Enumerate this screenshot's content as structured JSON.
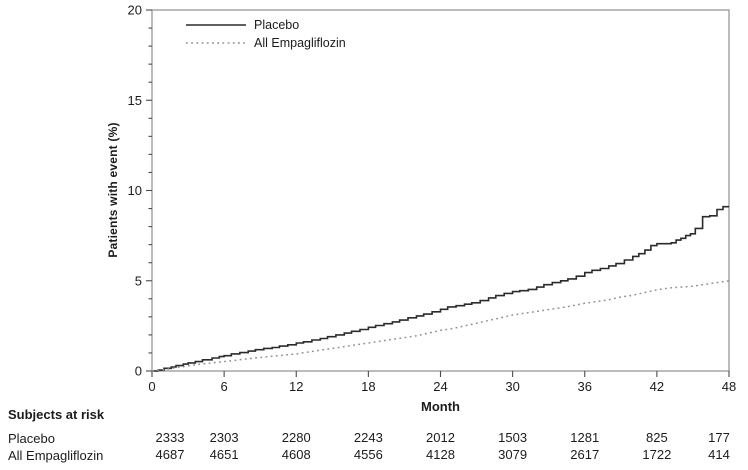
{
  "chart_data": {
    "type": "line",
    "subtype": "kaplan-meier-cumulative-incidence",
    "title": "",
    "xlabel": "Month",
    "ylabel": "Patients with event (%)",
    "xlim": [
      0,
      48
    ],
    "ylim": [
      0,
      20
    ],
    "x_ticks": [
      0,
      6,
      12,
      18,
      24,
      30,
      36,
      42,
      48
    ],
    "y_ticks": [
      0,
      5,
      10,
      15,
      20
    ],
    "y_minor_step": 1,
    "grid": "off",
    "legend_position": "top-left-inside",
    "series": [
      {
        "name": "Placebo",
        "style": "solid",
        "step": true,
        "points": [
          [
            0,
            0
          ],
          [
            0.5,
            0.05
          ],
          [
            1,
            0.15
          ],
          [
            1.6,
            0.22
          ],
          [
            2,
            0.3
          ],
          [
            2.6,
            0.38
          ],
          [
            3,
            0.45
          ],
          [
            3.6,
            0.52
          ],
          [
            4.2,
            0.62
          ],
          [
            5,
            0.72
          ],
          [
            5.6,
            0.8
          ],
          [
            6,
            0.85
          ],
          [
            6.6,
            0.95
          ],
          [
            7.3,
            1.02
          ],
          [
            8,
            1.1
          ],
          [
            8.6,
            1.18
          ],
          [
            9.3,
            1.25
          ],
          [
            10,
            1.3
          ],
          [
            10.6,
            1.38
          ],
          [
            11.3,
            1.45
          ],
          [
            12,
            1.55
          ],
          [
            12.6,
            1.62
          ],
          [
            13.3,
            1.72
          ],
          [
            14,
            1.8
          ],
          [
            14.6,
            1.9
          ],
          [
            15.3,
            2.0
          ],
          [
            16,
            2.1
          ],
          [
            16.6,
            2.2
          ],
          [
            17.3,
            2.3
          ],
          [
            18,
            2.42
          ],
          [
            18.6,
            2.52
          ],
          [
            19.3,
            2.62
          ],
          [
            20,
            2.72
          ],
          [
            20.6,
            2.82
          ],
          [
            21.3,
            2.95
          ],
          [
            22,
            3.05
          ],
          [
            22.6,
            3.15
          ],
          [
            23.3,
            3.28
          ],
          [
            24,
            3.42
          ],
          [
            24.6,
            3.55
          ],
          [
            25.3,
            3.62
          ],
          [
            26,
            3.7
          ],
          [
            26.6,
            3.78
          ],
          [
            27.3,
            3.9
          ],
          [
            28,
            4.05
          ],
          [
            28.6,
            4.18
          ],
          [
            29.3,
            4.3
          ],
          [
            30,
            4.4
          ],
          [
            30.6,
            4.45
          ],
          [
            31.3,
            4.52
          ],
          [
            32,
            4.65
          ],
          [
            32.6,
            4.78
          ],
          [
            33.3,
            4.9
          ],
          [
            34,
            5.0
          ],
          [
            34.6,
            5.1
          ],
          [
            35.3,
            5.25
          ],
          [
            36,
            5.45
          ],
          [
            36.6,
            5.58
          ],
          [
            37.3,
            5.68
          ],
          [
            38,
            5.82
          ],
          [
            38.6,
            5.95
          ],
          [
            39.3,
            6.15
          ],
          [
            40,
            6.35
          ],
          [
            40.5,
            6.5
          ],
          [
            41,
            6.7
          ],
          [
            41.5,
            6.95
          ],
          [
            42,
            7.05
          ],
          [
            43.2,
            7.1
          ],
          [
            43.6,
            7.25
          ],
          [
            44,
            7.35
          ],
          [
            44.4,
            7.5
          ],
          [
            44.8,
            7.6
          ],
          [
            45.2,
            7.9
          ],
          [
            45.8,
            8.55
          ],
          [
            46.4,
            8.6
          ],
          [
            47,
            8.95
          ],
          [
            47.5,
            9.1
          ],
          [
            48,
            9.1
          ]
        ]
      },
      {
        "name": "All Empagliflozin",
        "style": "dotted",
        "step": false,
        "points": [
          [
            0,
            0
          ],
          [
            1,
            0.08
          ],
          [
            2,
            0.18
          ],
          [
            3,
            0.28
          ],
          [
            4,
            0.38
          ],
          [
            5,
            0.45
          ],
          [
            6,
            0.52
          ],
          [
            7,
            0.6
          ],
          [
            8,
            0.68
          ],
          [
            9,
            0.75
          ],
          [
            10,
            0.82
          ],
          [
            11,
            0.88
          ],
          [
            12,
            0.95
          ],
          [
            13,
            1.05
          ],
          [
            14,
            1.15
          ],
          [
            15,
            1.25
          ],
          [
            16,
            1.35
          ],
          [
            17,
            1.45
          ],
          [
            18,
            1.55
          ],
          [
            19,
            1.65
          ],
          [
            20,
            1.75
          ],
          [
            21,
            1.85
          ],
          [
            22,
            1.95
          ],
          [
            23,
            2.1
          ],
          [
            24,
            2.25
          ],
          [
            25,
            2.35
          ],
          [
            26,
            2.5
          ],
          [
            27,
            2.65
          ],
          [
            28,
            2.8
          ],
          [
            29,
            2.95
          ],
          [
            30,
            3.1
          ],
          [
            31,
            3.2
          ],
          [
            32,
            3.3
          ],
          [
            33,
            3.4
          ],
          [
            34,
            3.5
          ],
          [
            35,
            3.62
          ],
          [
            36,
            3.75
          ],
          [
            37,
            3.85
          ],
          [
            38,
            3.95
          ],
          [
            39,
            4.1
          ],
          [
            40,
            4.2
          ],
          [
            41,
            4.35
          ],
          [
            42,
            4.5
          ],
          [
            43,
            4.6
          ],
          [
            44,
            4.65
          ],
          [
            45,
            4.7
          ],
          [
            46,
            4.8
          ],
          [
            47,
            4.9
          ],
          [
            48,
            5.0
          ]
        ]
      }
    ]
  },
  "at_risk": {
    "heading": "Subjects at risk",
    "tick_months": [
      0,
      6,
      12,
      18,
      24,
      30,
      36,
      42,
      48
    ],
    "rows": [
      {
        "label": "Placebo",
        "values": [
          "2333",
          "2303",
          "2280",
          "2243",
          "2012",
          "1503",
          "1281",
          "825",
          "177"
        ]
      },
      {
        "label": "All Empagliflozin",
        "values": [
          "4687",
          "4651",
          "4608",
          "4556",
          "4128",
          "3079",
          "2617",
          "1722",
          "414"
        ]
      }
    ]
  },
  "colors": {
    "background": "#ffffff",
    "frame": "#8f8f8f",
    "tick": "#4a4a4a",
    "text": "#1c1c1c",
    "placebo_line": "#2b2b2b",
    "empagliflozin_line": "#909090"
  }
}
